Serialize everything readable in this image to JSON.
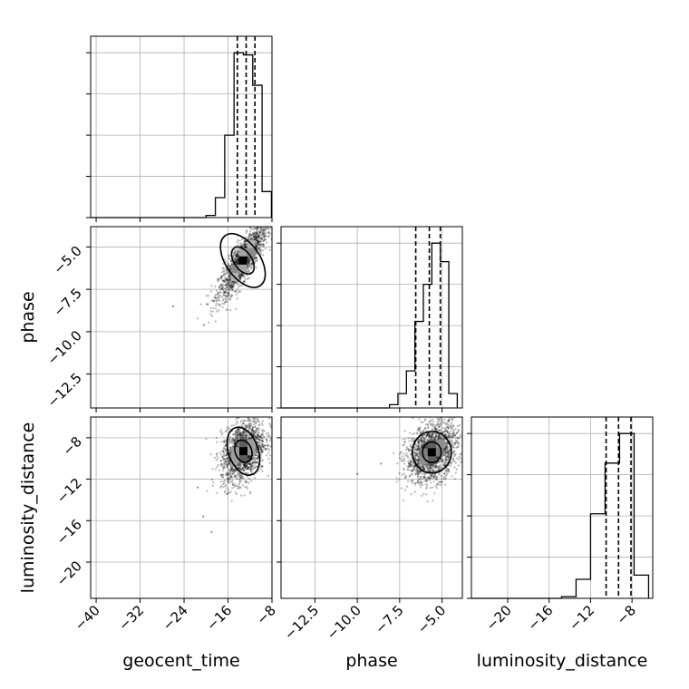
{
  "chart_data": {
    "type": "corner",
    "parameters": [
      "geocent_time",
      "phase",
      "luminosity_distance"
    ],
    "title": "",
    "grid": true,
    "axes": {
      "geocent_time": {
        "label": "geocent_time",
        "range": [
          -41,
          -8
        ],
        "ticks": [
          -40,
          -32,
          -24,
          -16,
          -8
        ],
        "tick_labels": [
          "−40",
          "−32",
          "−24",
          "−16",
          "−8"
        ]
      },
      "phase": {
        "label": "phase",
        "range": [
          -14.5,
          -3.8
        ],
        "ticks": [
          -12.5,
          -10.0,
          -7.5,
          -5.0
        ],
        "tick_labels": [
          "−12.5",
          "−10.0",
          "−7.5",
          "−5.0"
        ]
      },
      "luminosity_distance": {
        "label": "luminosity_distance",
        "range": [
          -23.5,
          -6.0
        ],
        "ticks": [
          -20,
          -16,
          -12,
          -8
        ],
        "tick_labels": [
          "−20",
          "−16",
          "−12",
          "−8"
        ]
      }
    },
    "histograms": [
      {
        "parameter": "geocent_time",
        "bin_edges": [
          -20,
          -18.3,
          -16.6,
          -14.9,
          -13.2,
          -11.5,
          -9.8,
          -8.1
        ],
        "counts": [
          5,
          46,
          190,
          380,
          375,
          305,
          60
        ],
        "quantiles": [
          -14.3,
          -12.7,
          -11.1
        ]
      },
      {
        "parameter": "phase",
        "bin_edges": [
          -8.1,
          -7.6,
          -7.1,
          -6.6,
          -6.1,
          -5.6,
          -5.1,
          -4.6,
          -4.1
        ],
        "counts": [
          8,
          35,
          90,
          210,
          300,
          400,
          355,
          35
        ],
        "quantiles": [
          -6.55,
          -5.75,
          -5.1
        ]
      },
      {
        "parameter": "luminosity_distance",
        "bin_edges": [
          -14.8,
          -13.4,
          -12.0,
          -10.6,
          -9.2,
          -7.8,
          -6.4
        ],
        "counts": [
          4,
          45,
          200,
          320,
          390,
          55
        ],
        "quantiles": [
          -10.5,
          -9.3,
          -8.1
        ]
      }
    ],
    "pairs": [
      {
        "x": "geocent_time",
        "y": "phase",
        "center": [
          -13.3,
          -5.8
        ],
        "spread": [
          2.2,
          1.1
        ],
        "correlation": 0.85,
        "outliers": [
          [
            -20.4,
            -9.6
          ],
          [
            -26.0,
            -8.5
          ]
        ],
        "contours": [
          {
            "level": 0.68,
            "semi_axes": [
              1.6,
              0.9
            ],
            "angle_deg": 35
          },
          {
            "level": 0.95,
            "semi_axes": [
              3.1,
              1.8
            ],
            "angle_deg": 35
          }
        ]
      },
      {
        "x": "geocent_time",
        "y": "luminosity_distance",
        "center": [
          -13.2,
          -9.3
        ],
        "spread": [
          2.0,
          1.5
        ],
        "correlation": 0.35,
        "outliers": [
          [
            -20.5,
            -15.6
          ],
          [
            -19.0,
            -17.1
          ],
          [
            -21.5,
            -12.8
          ]
        ],
        "contours": [
          {
            "level": 0.68,
            "semi_axes": [
              1.5,
              1.1
            ],
            "angle_deg": 20
          },
          {
            "level": 0.95,
            "semi_axes": [
              2.7,
              2.4
            ],
            "angle_deg": 20
          }
        ]
      },
      {
        "x": "phase",
        "y": "luminosity_distance",
        "center": [
          -5.6,
          -9.4
        ],
        "spread": [
          0.75,
          1.45
        ],
        "correlation": 0.3,
        "outliers": [
          [
            -10.0,
            -11.5
          ],
          [
            -8.6,
            -10.5
          ]
        ],
        "contours": [
          {
            "level": 0.68,
            "semi_axes": [
              0.55,
              1.0
            ],
            "angle_deg": 0
          },
          {
            "level": 0.95,
            "semi_axes": [
              1.15,
              2.0
            ],
            "angle_deg": 0
          }
        ]
      }
    ]
  }
}
